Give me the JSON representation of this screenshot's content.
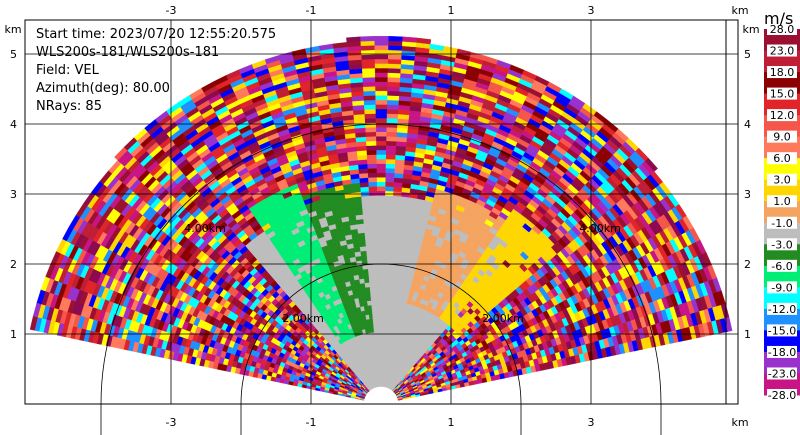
{
  "info": {
    "start_time": "Start time: 2023/07/20 12:55:20.575",
    "station": "WLS200s-181/WLS200s-181",
    "field": "Field: VEL",
    "azimuth": "Azimuth(deg): 80.00",
    "nrays": "NRays: 85"
  },
  "axes": {
    "x_unit": "km",
    "y_unit": "km",
    "x_ticks": [
      "-3",
      "-1",
      "1",
      "3"
    ],
    "y_ticks": [
      "1",
      "2",
      "3",
      "4",
      "5"
    ]
  },
  "range_labels": [
    "2.00km",
    "2.00km",
    "4.00km",
    "4.00km"
  ],
  "colorbar": {
    "unit": "m/s",
    "labels": [
      "28.0",
      "23.0",
      "18.0",
      "15.0",
      "12.0",
      "9.0",
      "6.0",
      "3.0",
      "1.0",
      "-1.0",
      "-3.0",
      "-6.0",
      "-9.0",
      "-12.0",
      "-15.0",
      "-18.0",
      "-23.0",
      "-28.0"
    ],
    "colors": [
      "#9b1030",
      "#c01e36",
      "#8b0000",
      "#e0242a",
      "#f4574a",
      "#ff7a5c",
      "#ffff00",
      "#ffd700",
      "#f4a460",
      "#bdbdbd",
      "#228b22",
      "#00ee76",
      "#00ffff",
      "#1e90ff",
      "#0000ff",
      "#9932cc",
      "#c71585",
      "#8b0a50"
    ]
  },
  "chart_data": {
    "type": "heatmap",
    "field": "VEL",
    "units": "m/s",
    "sector_deg": [
      -78,
      78
    ],
    "max_range_km": 5.2,
    "regions": [
      {
        "azimuth_deg": [
          -35,
          -20
        ],
        "range_km": [
          1.0,
          3.4
        ],
        "value_class": "-6.0"
      },
      {
        "azimuth_deg": [
          -20,
          -5
        ],
        "range_km": [
          1.0,
          3.2
        ],
        "value_class": "-3.0"
      },
      {
        "azimuth_deg": [
          -10,
          15
        ],
        "range_km": [
          0.0,
          3.0
        ],
        "value_class": "-1.0"
      },
      {
        "azimuth_deg": [
          15,
          35
        ],
        "range_km": [
          1.5,
          3.2
        ],
        "value_class": "1.0"
      },
      {
        "azimuth_deg": [
          35,
          50
        ],
        "range_km": [
          1.5,
          3.4
        ],
        "value_class": "3.0"
      }
    ]
  }
}
